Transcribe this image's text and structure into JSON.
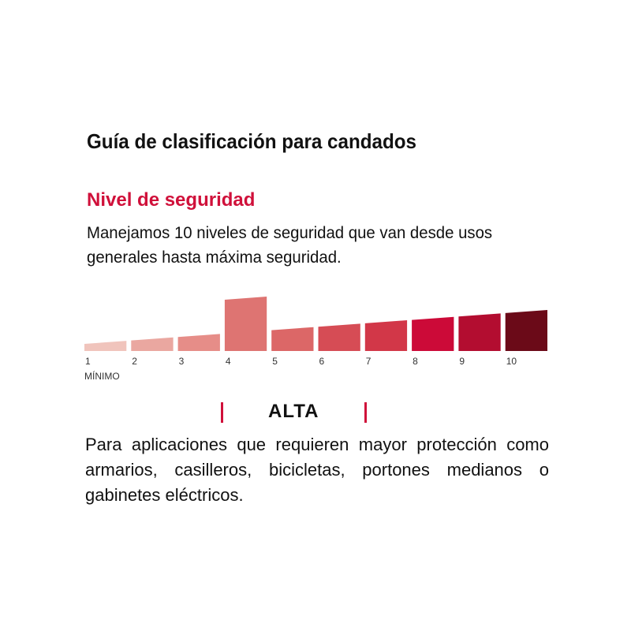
{
  "header": {
    "title": "Guía de clasificación para candados",
    "subtitle": "Nivel de seguridad",
    "intro": "Manejamos 10 niveles de seguridad que van desde usos generales hasta máxima seguridad."
  },
  "chart_data": {
    "type": "bar",
    "categories": [
      "1",
      "2",
      "3",
      "4",
      "5",
      "6",
      "7",
      "8",
      "9",
      "10"
    ],
    "values": [
      1,
      2,
      3,
      4,
      5,
      6,
      7,
      8,
      9,
      10
    ],
    "highlighted": "4",
    "min_label": "MÍNIMO",
    "colors": [
      "#f0c4bc",
      "#eaa7a0",
      "#e68d88",
      "#de7472",
      "#dc6767",
      "#d64c55",
      "#d23748",
      "#cc0a38",
      "#b30d30",
      "#6b0a18"
    ]
  },
  "selected_level": {
    "name": "ALTA",
    "accent": "#d0103a",
    "description": "Para aplicaciones que requieren mayor protección como armarios, casilleros, bicicletas, portones medianos o gabinetes eléctricos."
  }
}
